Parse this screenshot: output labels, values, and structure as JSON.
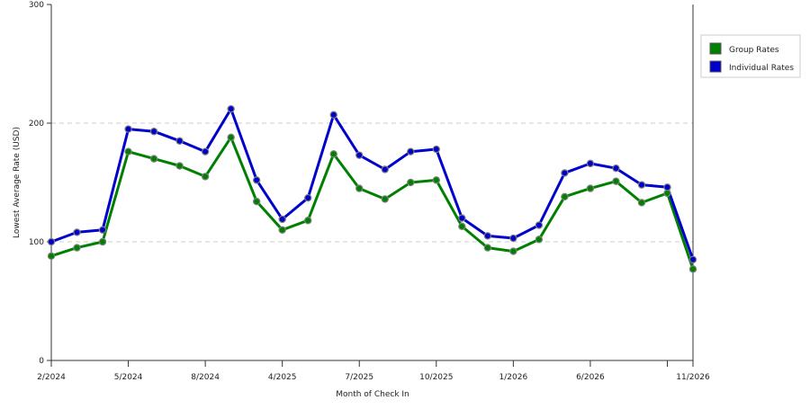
{
  "chart_data": {
    "type": "line",
    "title": "",
    "xlabel": "Month of Check In",
    "ylabel": "Lowest Average Rate (USD)",
    "ylim": [
      0,
      300
    ],
    "yticks": [
      0,
      100,
      200,
      300
    ],
    "x_count": 26,
    "x_tick_labels": [
      {
        "index": 0,
        "label": "2/2024"
      },
      {
        "index": 3,
        "label": "5/2024"
      },
      {
        "index": 6,
        "label": "8/2024"
      },
      {
        "index": 9,
        "label": "4/2025"
      },
      {
        "index": 12,
        "label": "7/2025"
      },
      {
        "index": 15,
        "label": "10/2025"
      },
      {
        "index": 18,
        "label": "1/2026"
      },
      {
        "index": 21,
        "label": "6/2026"
      },
      {
        "index": 24,
        "label": ""
      },
      {
        "index": 25,
        "label": "11/2026"
      }
    ],
    "grid": "horizontal-dashed",
    "legend_position": "right",
    "series": [
      {
        "name": "Group Rates",
        "color": "#008000",
        "values": [
          88,
          95,
          100,
          176,
          170,
          164,
          155,
          188,
          134,
          110,
          118,
          174,
          145,
          136,
          150,
          152,
          113,
          95,
          92,
          102,
          138,
          145,
          151,
          133,
          141,
          77
        ]
      },
      {
        "name": "Individual Rates",
        "color": "#0000cc",
        "values": [
          100,
          108,
          110,
          195,
          193,
          185,
          176,
          212,
          152,
          119,
          137,
          207,
          173,
          161,
          176,
          178,
          120,
          105,
          103,
          114,
          158,
          166,
          162,
          148,
          146,
          85
        ]
      }
    ]
  }
}
